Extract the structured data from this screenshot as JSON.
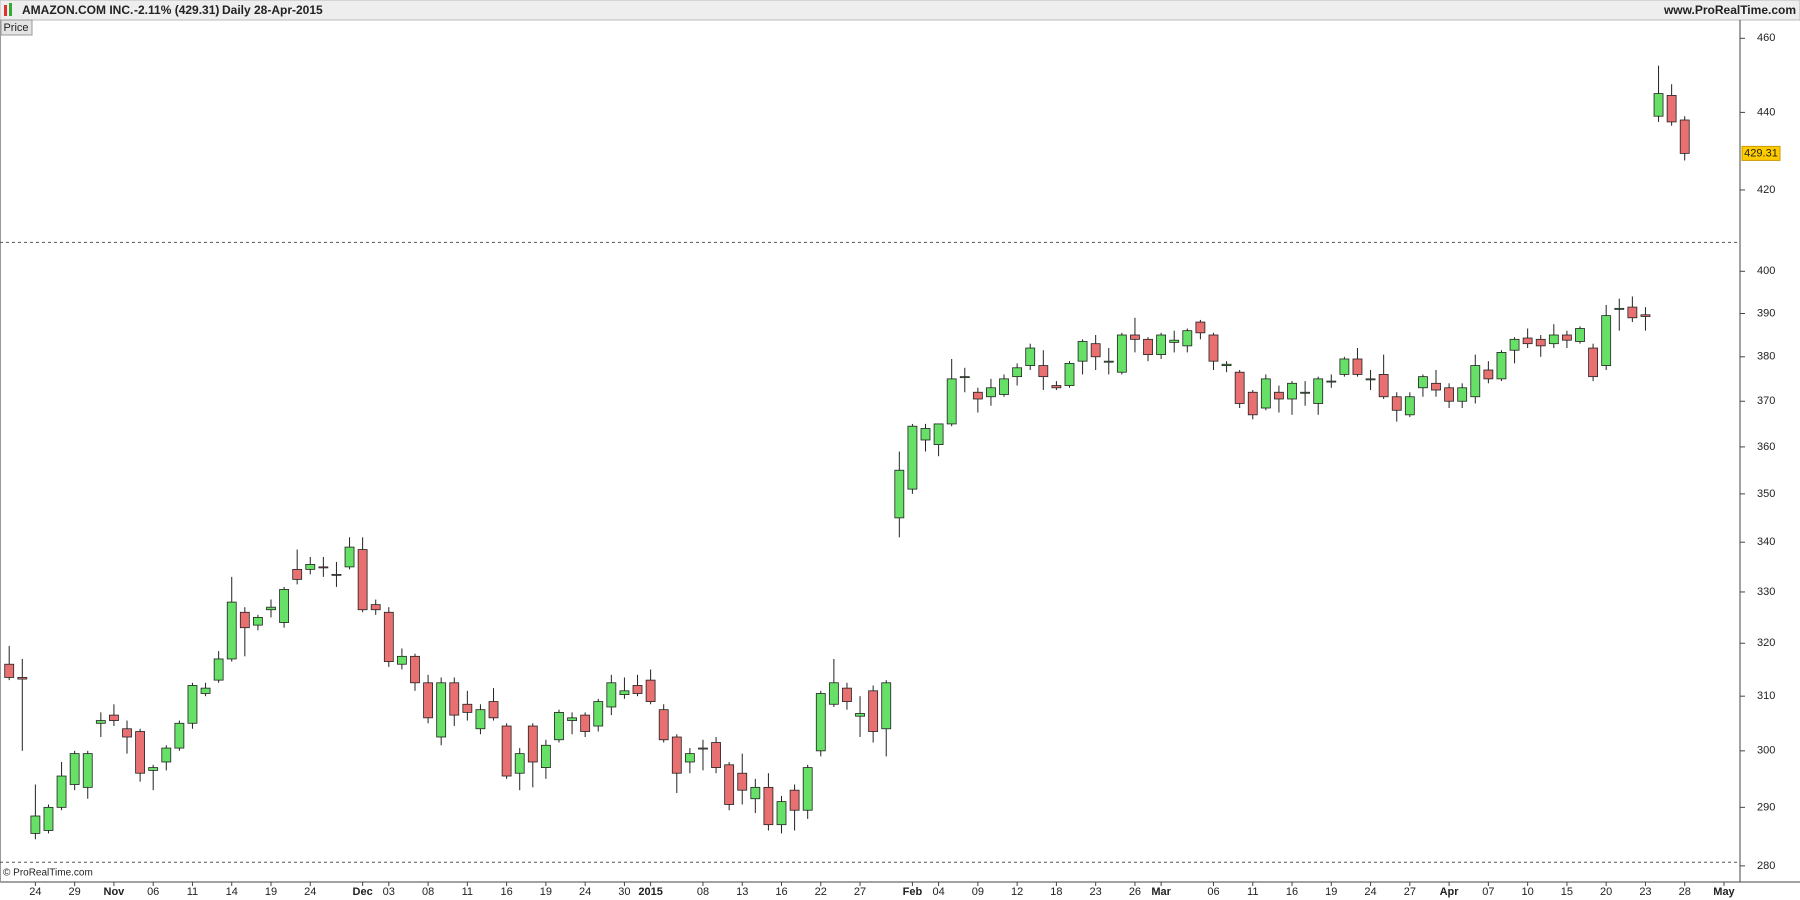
{
  "header": {
    "title": "AMAZON.COM INC.",
    "change": "-2.11% (429.31)",
    "period": "Daily",
    "date": "28-Apr-2015",
    "site": "www.ProRealTime.com",
    "panel_button": "Price",
    "copyright": "© ProRealTime.com"
  },
  "chart_data": {
    "type": "candlestick",
    "log_scale": true,
    "grid": false,
    "up_color": "#66e066",
    "down_color": "#e87070",
    "ylim": [
      277.3,
      464.8
    ],
    "yticks": [
      280,
      290,
      300,
      310,
      320,
      330,
      340,
      350,
      360,
      370,
      380,
      390,
      400,
      420,
      440,
      460
    ],
    "reference_lines": [
      407,
      280.6
    ],
    "last_price": 429.31,
    "categories": [
      null,
      null,
      "24",
      null,
      null,
      "29",
      null,
      null,
      "Nov",
      null,
      null,
      "06",
      null,
      null,
      "11",
      null,
      null,
      "14",
      null,
      null,
      "19",
      null,
      null,
      "24",
      null,
      null,
      null,
      "Dec",
      null,
      "03",
      null,
      null,
      "08",
      null,
      null,
      "11",
      null,
      null,
      "16",
      null,
      null,
      "19",
      null,
      null,
      "24",
      null,
      null,
      "30",
      null,
      "2015",
      null,
      null,
      null,
      "08",
      null,
      null,
      "13",
      null,
      null,
      "16",
      null,
      null,
      "22",
      null,
      null,
      "27",
      null,
      null,
      null,
      "Feb",
      null,
      "04",
      null,
      null,
      "09",
      null,
      null,
      "12",
      null,
      null,
      "18",
      null,
      null,
      "23",
      null,
      null,
      "26",
      null,
      "Mar",
      null,
      null,
      null,
      "06",
      null,
      null,
      "11",
      null,
      null,
      "16",
      null,
      null,
      "19",
      null,
      null,
      "24",
      null,
      null,
      "27",
      null,
      null,
      "Apr",
      null,
      null,
      "07",
      null,
      null,
      "10",
      null,
      null,
      "15",
      null,
      null,
      "20",
      null,
      null,
      "23",
      null,
      null,
      "28",
      null,
      null,
      "May"
    ],
    "open": [
      316,
      313.5,
      285.5,
      286,
      290,
      294,
      293.5,
      305,
      306.5,
      304,
      303.5,
      296.5,
      298,
      300.5,
      305,
      310.5,
      313,
      317,
      326,
      323.5,
      326.5,
      324,
      334.5,
      334.5,
      335,
      333.5,
      335,
      338.5,
      327.5,
      326,
      316,
      317.5,
      312.5,
      302.5,
      312.5,
      308.5,
      304,
      309,
      304.5,
      296,
      304.5,
      297,
      302,
      305.5,
      306.5,
      304.5,
      308,
      310.3,
      312,
      313,
      307.5,
      302.5,
      298,
      300.5,
      301.5,
      297.5,
      296,
      291.5,
      293.5,
      287,
      293,
      289.5,
      300,
      308.5,
      311.5,
      306.3,
      311,
      304,
      345,
      351,
      361.5,
      360.5,
      365,
      375.5,
      372,
      371,
      371.5,
      375.5,
      378,
      378,
      373.5,
      373.5,
      379,
      383,
      379,
      376.5,
      385,
      384,
      380.5,
      383.3,
      382.5,
      388,
      385,
      378,
      376.5,
      372,
      368.5,
      372,
      370.5,
      372,
      369.5,
      374.5,
      376,
      379.5,
      375,
      376,
      371,
      367,
      373,
      374,
      373,
      370,
      371,
      377,
      375,
      381.5,
      384.3,
      384,
      383,
      385,
      383.5,
      382,
      378,
      391,
      391.5,
      389.7,
      439,
      444.5,
      438,
      null,
      null,
      null
    ],
    "high": [
      319.5,
      317,
      294,
      290.5,
      298,
      300,
      300,
      307,
      308.5,
      305.5,
      304,
      297.5,
      301,
      305.5,
      312.5,
      312.5,
      318.5,
      333,
      327,
      325.5,
      328.5,
      331,
      338.5,
      337,
      337,
      336,
      341,
      341,
      328.5,
      327,
      319,
      318,
      314,
      313.5,
      313.5,
      311,
      308.5,
      311.5,
      305,
      300.5,
      305,
      302,
      307.5,
      307,
      307,
      309.5,
      314,
      313.5,
      314,
      315,
      308.5,
      303,
      300.5,
      302,
      302.5,
      298,
      299.5,
      295,
      296,
      292,
      294,
      297.5,
      311,
      317,
      312.5,
      310,
      312,
      313,
      359,
      365,
      365,
      365,
      379.5,
      377.5,
      373,
      375,
      376,
      378.5,
      383,
      381.5,
      374.5,
      379,
      384,
      385,
      382,
      385.5,
      389,
      384.5,
      385.5,
      386,
      386.5,
      388.5,
      385.5,
      379,
      377,
      372.5,
      376,
      373.5,
      374.5,
      374.5,
      375.5,
      376,
      380,
      382,
      377,
      380.5,
      372,
      372,
      376,
      377,
      374,
      374,
      380.5,
      379,
      381.5,
      384.5,
      386.5,
      385,
      387.5,
      386,
      387,
      383,
      392,
      393.5,
      394,
      391.5,
      452.5,
      447.5,
      439,
      null,
      null,
      null
    ],
    "low": [
      313,
      300,
      284.5,
      285.5,
      289.5,
      293,
      291.5,
      302.5,
      304.5,
      299.5,
      294.5,
      293,
      296.5,
      300,
      304,
      310,
      312.5,
      316.5,
      317.5,
      322.5,
      325,
      323,
      331.5,
      333.5,
      333,
      331,
      334.5,
      326,
      325.5,
      315.5,
      315,
      311,
      305,
      301,
      304.5,
      305.5,
      303,
      305.5,
      295,
      293,
      293.5,
      295,
      301.5,
      303,
      302.5,
      303.5,
      306.5,
      309.5,
      310,
      308.5,
      301.5,
      292.5,
      296,
      296.5,
      296,
      289.5,
      290.5,
      289,
      286,
      285.5,
      286,
      288,
      299,
      308,
      307.5,
      302.5,
      301.5,
      299,
      341,
      350,
      359,
      358,
      364.5,
      372,
      367.5,
      369,
      371,
      373.5,
      377,
      372.5,
      372.5,
      373,
      376,
      377,
      376,
      376,
      381,
      379,
      379.5,
      381,
      381,
      384,
      377,
      376.5,
      368.5,
      366,
      368,
      367.5,
      367,
      369,
      367,
      373,
      375.5,
      375.5,
      372.5,
      370.5,
      365.5,
      366.5,
      371,
      371,
      368.5,
      368.5,
      369.5,
      374,
      374.5,
      378.5,
      382,
      380,
      382,
      382,
      383,
      374.5,
      377,
      386,
      388,
      386,
      437.5,
      436.5,
      427.5,
      null,
      null,
      null
    ],
    "close": [
      313.5,
      313.2,
      288.5,
      290,
      295.5,
      299.5,
      299.5,
      305.5,
      305.5,
      302.5,
      296,
      297,
      300.5,
      305,
      312,
      311.5,
      317,
      328,
      323,
      325,
      327,
      330.5,
      332.5,
      335.5,
      334.8,
      333.5,
      339,
      326.5,
      326.5,
      316.5,
      317.5,
      312.5,
      306,
      312.5,
      306.5,
      307,
      307.5,
      306,
      295.5,
      299.5,
      298,
      301,
      307,
      306,
      303.5,
      309,
      312.5,
      311,
      310.5,
      309,
      302,
      296,
      299.5,
      300.5,
      297,
      290.5,
      293,
      293.5,
      287,
      291,
      289.5,
      297,
      310.5,
      312.5,
      309,
      306.8,
      303.5,
      312.5,
      355,
      364.5,
      364,
      365,
      375,
      375.5,
      370.5,
      373,
      375,
      377.5,
      382,
      375.5,
      373,
      378.5,
      383.5,
      380,
      379,
      385,
      384,
      380.5,
      385,
      383.8,
      386,
      385.5,
      379,
      378.3,
      369.5,
      367,
      375,
      370.5,
      374,
      372,
      375,
      374.5,
      379.5,
      376,
      375,
      371,
      368,
      371,
      375.5,
      372.5,
      370,
      373,
      378,
      375,
      381,
      384,
      383,
      382.5,
      385,
      383.8,
      386.5,
      375.5,
      389.5,
      391.2,
      389,
      389.3,
      445,
      437.5,
      429.31,
      null,
      null,
      null
    ]
  }
}
